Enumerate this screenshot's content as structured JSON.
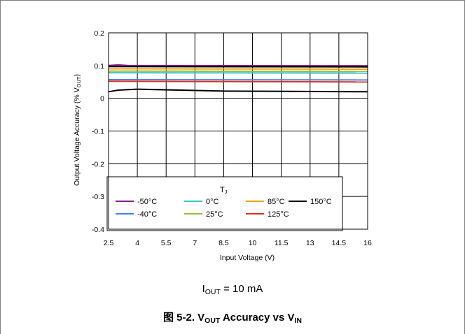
{
  "chart_data": {
    "type": "line",
    "xlabel": "Input Voltage (V)",
    "ylabel_main": "Output Voltage Accuracy (% V",
    "ylabel_sub": "OUT",
    "ylabel_end": ")",
    "xlim": [
      2.5,
      16
    ],
    "ylim": [
      -0.4,
      0.2
    ],
    "x_ticks": [
      2.5,
      4,
      5.5,
      7,
      8.5,
      10,
      11.5,
      13,
      14.5,
      16
    ],
    "x_tick_labels": [
      "2.5",
      "4",
      "5.5",
      "7",
      "8.5",
      "10",
      "11.5",
      "13",
      "14.5",
      "16"
    ],
    "y_ticks": [
      0.2,
      0.1,
      0,
      -0.1,
      -0.2,
      -0.3,
      -0.4
    ],
    "y_tick_labels": [
      "0.2",
      "0.1",
      "0",
      "-0.1",
      "-0.2",
      "-0.3",
      "-0.4"
    ],
    "grid": true,
    "legend": {
      "title": "T",
      "title_sub": "J",
      "placement": "bottom-left"
    },
    "series": [
      {
        "name": "-50°C",
        "color": "#8b1a8b",
        "x": [
          2.5,
          3.0,
          3.5,
          16
        ],
        "y": [
          0.1,
          0.102,
          0.1,
          0.099
        ]
      },
      {
        "name": "-40°C",
        "color": "#4a7fe0",
        "x": [
          2.5,
          16
        ],
        "y": [
          0.057,
          0.056
        ]
      },
      {
        "name": "0°C",
        "color": "#40c0c0",
        "x": [
          2.5,
          16
        ],
        "y": [
          0.078,
          0.077
        ]
      },
      {
        "name": "25°C",
        "color": "#90c040",
        "x": [
          2.5,
          16
        ],
        "y": [
          0.083,
          0.082
        ]
      },
      {
        "name": "85°C",
        "color": "#f0a020",
        "x": [
          2.5,
          16
        ],
        "y": [
          0.09,
          0.089
        ]
      },
      {
        "name": "125°C",
        "color": "#e03020",
        "x": [
          2.5,
          16
        ],
        "y": [
          0.052,
          0.05
        ]
      },
      {
        "name": "150°C",
        "color": "#000000",
        "x": [
          2.5,
          3.0,
          4.0,
          8.5,
          16
        ],
        "y": [
          0.02,
          0.025,
          0.028,
          0.022,
          0.02
        ]
      },
      {
        "name": "",
        "color": "#000000",
        "x": [
          2.5,
          16
        ],
        "y": [
          0.097,
          0.096
        ]
      }
    ]
  },
  "condition": {
    "prefix": "I",
    "sub": "OUT",
    "suffix": " = 10 mA"
  },
  "caption": {
    "prefix": "图 5-2. V",
    "sub1": "OUT",
    "middle": " Accuracy vs V",
    "sub2": "IN"
  }
}
